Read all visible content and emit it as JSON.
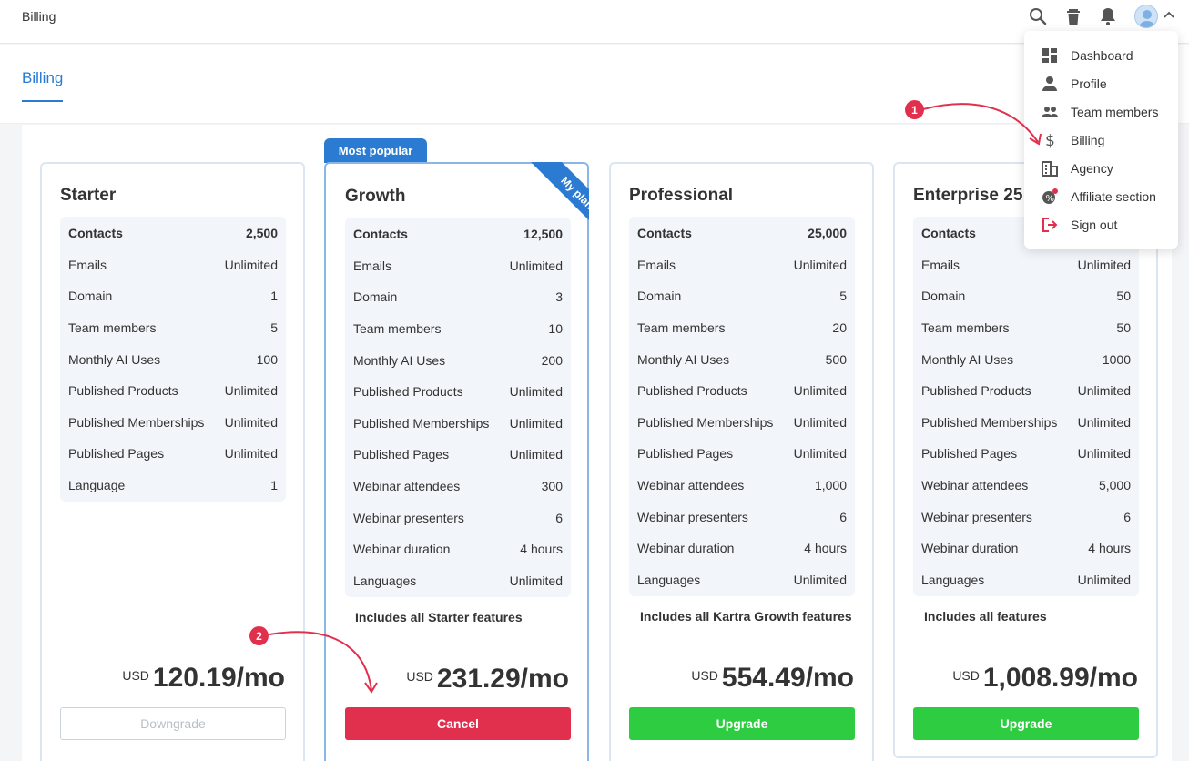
{
  "header": {
    "app_title": "Billing"
  },
  "subnav": {
    "tab_label": "Billing"
  },
  "user_menu": {
    "items": [
      {
        "label": "Dashboard",
        "icon": "dashboard-icon"
      },
      {
        "label": "Profile",
        "icon": "person-icon"
      },
      {
        "label": "Team members",
        "icon": "people-icon"
      },
      {
        "label": "Billing",
        "icon": "dollar-icon"
      },
      {
        "label": "Agency",
        "icon": "building-icon"
      },
      {
        "label": "Affiliate section",
        "icon": "affiliate-icon"
      },
      {
        "label": "Sign out",
        "icon": "sign-out-icon"
      }
    ]
  },
  "annotations": [
    "1",
    "2"
  ],
  "plans": [
    {
      "name": "Starter",
      "features": [
        {
          "label": "Contacts",
          "value": "2,500"
        },
        {
          "label": "Emails",
          "value": "Unlimited"
        },
        {
          "label": "Domain",
          "value": "1"
        },
        {
          "label": "Team members",
          "value": "5"
        },
        {
          "label": "Monthly AI Uses",
          "value": "100"
        },
        {
          "label": "Published Products",
          "value": "Unlimited"
        },
        {
          "label": "Published Memberships",
          "value": "Unlimited"
        },
        {
          "label": "Published Pages",
          "value": "Unlimited"
        },
        {
          "label": "Language",
          "value": "1"
        }
      ],
      "includes": "",
      "currency": "USD",
      "price": "120.19/mo",
      "button": "Downgrade"
    },
    {
      "name": "Growth",
      "tag": "Most popular",
      "ribbon": "My plan",
      "features": [
        {
          "label": "Contacts",
          "value": "12,500"
        },
        {
          "label": "Emails",
          "value": "Unlimited"
        },
        {
          "label": "Domain",
          "value": "3"
        },
        {
          "label": "Team members",
          "value": "10"
        },
        {
          "label": "Monthly AI Uses",
          "value": "200"
        },
        {
          "label": "Published Products",
          "value": "Unlimited"
        },
        {
          "label": "Published Memberships",
          "value": "Unlimited"
        },
        {
          "label": "Published Pages",
          "value": "Unlimited"
        },
        {
          "label": "Webinar attendees",
          "value": "300"
        },
        {
          "label": "Webinar presenters",
          "value": "6"
        },
        {
          "label": "Webinar duration",
          "value": "4 hours"
        },
        {
          "label": "Languages",
          "value": "Unlimited"
        }
      ],
      "includes": "Includes all Starter features",
      "currency": "USD",
      "price": "231.29/mo",
      "button": "Cancel"
    },
    {
      "name": "Professional",
      "features": [
        {
          "label": "Contacts",
          "value": "25,000"
        },
        {
          "label": "Emails",
          "value": "Unlimited"
        },
        {
          "label": "Domain",
          "value": "5"
        },
        {
          "label": "Team members",
          "value": "20"
        },
        {
          "label": "Monthly AI Uses",
          "value": "500"
        },
        {
          "label": "Published Products",
          "value": "Unlimited"
        },
        {
          "label": "Published Memberships",
          "value": "Unlimited"
        },
        {
          "label": "Published Pages",
          "value": "Unlimited"
        },
        {
          "label": "Webinar attendees",
          "value": "1,000"
        },
        {
          "label": "Webinar presenters",
          "value": "6"
        },
        {
          "label": "Webinar duration",
          "value": "4 hours"
        },
        {
          "label": "Languages",
          "value": "Unlimited"
        }
      ],
      "includes": "Includes all Kartra Growth features",
      "currency": "USD",
      "price": "554.49/mo",
      "button": "Upgrade"
    },
    {
      "name": "Enterprise 25",
      "features": [
        {
          "label": "Contacts",
          "value": ""
        },
        {
          "label": "Emails",
          "value": "Unlimited"
        },
        {
          "label": "Domain",
          "value": "50"
        },
        {
          "label": "Team members",
          "value": "50"
        },
        {
          "label": "Monthly AI Uses",
          "value": "1000"
        },
        {
          "label": "Published Products",
          "value": "Unlimited"
        },
        {
          "label": "Published Memberships",
          "value": "Unlimited"
        },
        {
          "label": "Published Pages",
          "value": "Unlimited"
        },
        {
          "label": "Webinar attendees",
          "value": "5,000"
        },
        {
          "label": "Webinar presenters",
          "value": "6"
        },
        {
          "label": "Webinar duration",
          "value": "4 hours"
        },
        {
          "label": "Languages",
          "value": "Unlimited"
        }
      ],
      "includes": "Includes all features",
      "currency": "USD",
      "price": "1,008.99/mo",
      "button": "Upgrade"
    }
  ],
  "colors": {
    "accent": "#2a7bd1",
    "cancel": "#e0304e",
    "upgrade": "#2ecc40",
    "annotation": "#e0304e"
  }
}
